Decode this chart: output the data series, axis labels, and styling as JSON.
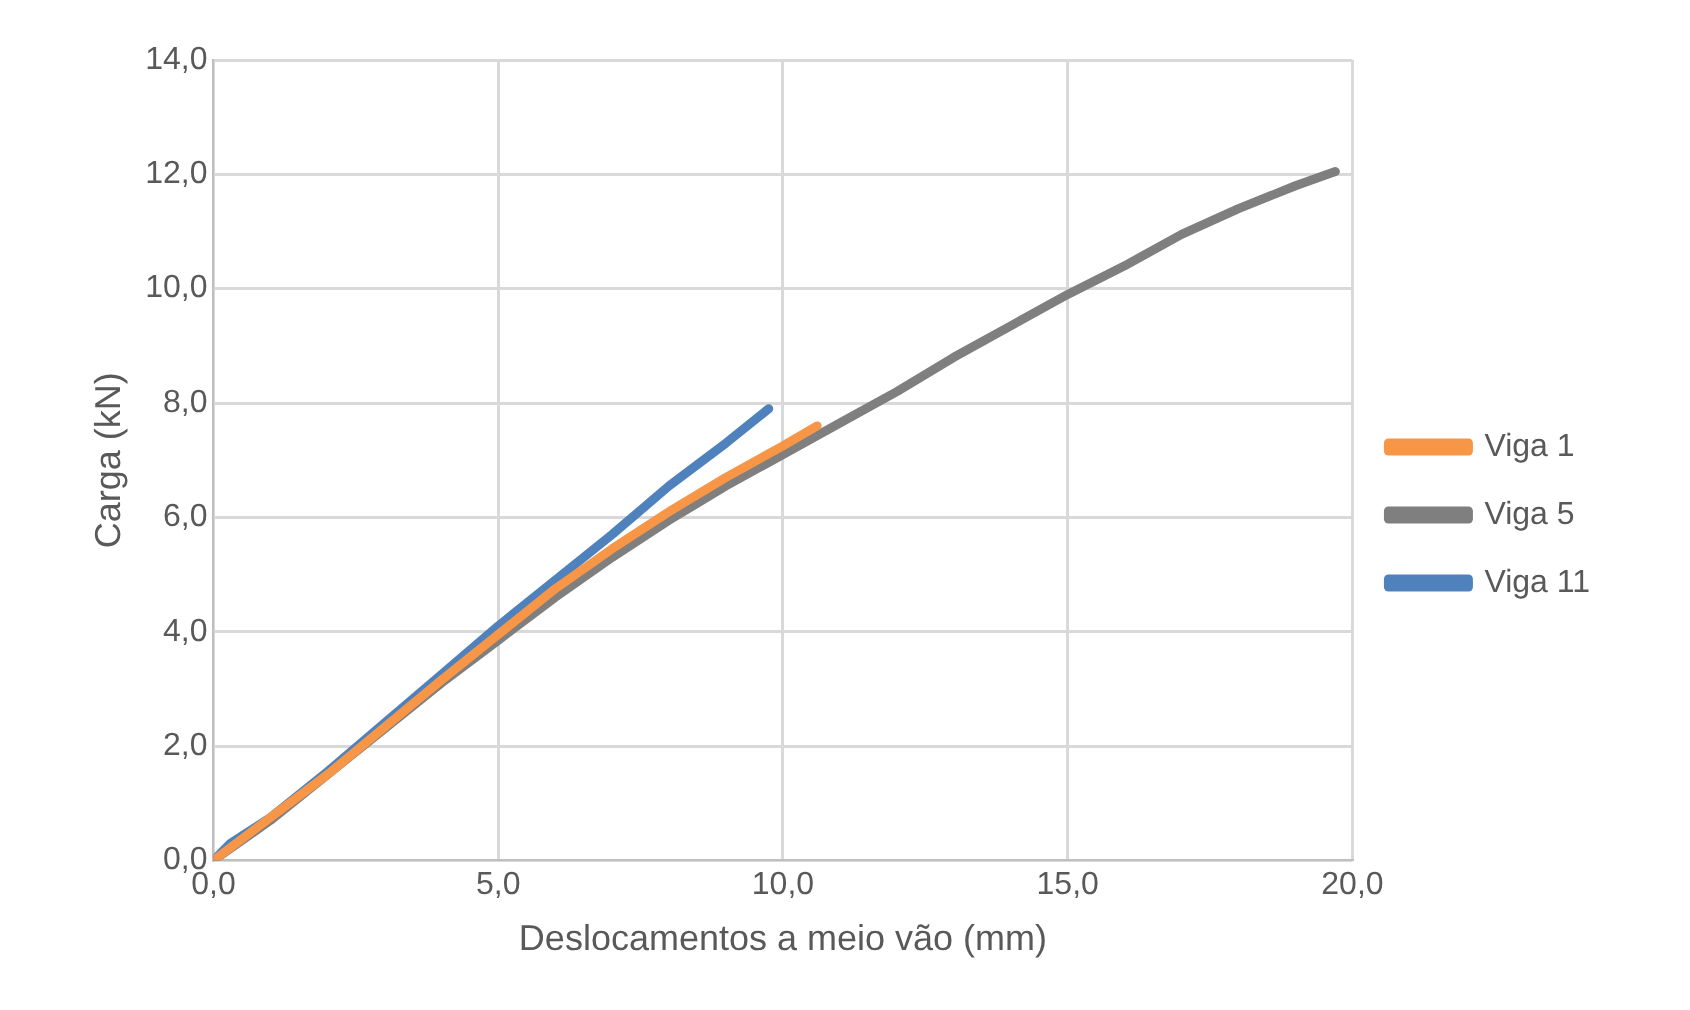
{
  "chart_data": {
    "type": "line",
    "xlabel": "Deslocamentos a meio vão (mm)",
    "ylabel": "Carga (kN)",
    "xlim": [
      0,
      20
    ],
    "ylim": [
      0,
      14
    ],
    "xticks": [
      {
        "value": 0,
        "label": "0,0"
      },
      {
        "value": 5,
        "label": "5,0"
      },
      {
        "value": 10,
        "label": "10,0"
      },
      {
        "value": 15,
        "label": "15,0"
      },
      {
        "value": 20,
        "label": "20,0"
      }
    ],
    "yticks": [
      {
        "value": 0,
        "label": "0,0"
      },
      {
        "value": 2,
        "label": "2,0"
      },
      {
        "value": 4,
        "label": "4,0"
      },
      {
        "value": 6,
        "label": "6,0"
      },
      {
        "value": 8,
        "label": "8,0"
      },
      {
        "value": 10,
        "label": "10,0"
      },
      {
        "value": 12,
        "label": "12,0"
      },
      {
        "value": 14,
        "label": "14,0"
      }
    ],
    "grid": true,
    "legend": "right",
    "marker": "none",
    "line_style": "solid",
    "series": [
      {
        "name": "Viga 1",
        "color": "#f79646",
        "x": [
          0,
          2,
          4,
          5,
          6,
          7,
          8,
          9,
          10,
          10.6
        ],
        "values": [
          0,
          1.5,
          3.15,
          3.95,
          4.75,
          5.45,
          6.1,
          6.7,
          7.25,
          7.6
        ]
      },
      {
        "name": "Viga 5",
        "color": "#7f7f7f",
        "x": [
          0,
          1,
          2,
          3,
          4,
          5,
          6,
          7,
          8,
          9,
          10,
          11,
          12,
          13,
          14,
          15,
          16,
          17,
          18,
          19,
          19.7
        ],
        "values": [
          0,
          0.7,
          1.5,
          2.3,
          3.1,
          3.85,
          4.6,
          5.3,
          5.95,
          6.55,
          7.1,
          7.65,
          8.2,
          8.8,
          9.35,
          9.9,
          10.4,
          10.95,
          11.4,
          11.8,
          12.05
        ]
      },
      {
        "name": "Viga 11",
        "color": "#4f81bd",
        "x": [
          0,
          0.3,
          1,
          2,
          3,
          4,
          5,
          6,
          7,
          8,
          9,
          9.75
        ],
        "values": [
          0,
          0.3,
          0.75,
          1.55,
          2.4,
          3.25,
          4.1,
          4.9,
          5.7,
          6.55,
          7.3,
          7.9
        ]
      }
    ]
  }
}
